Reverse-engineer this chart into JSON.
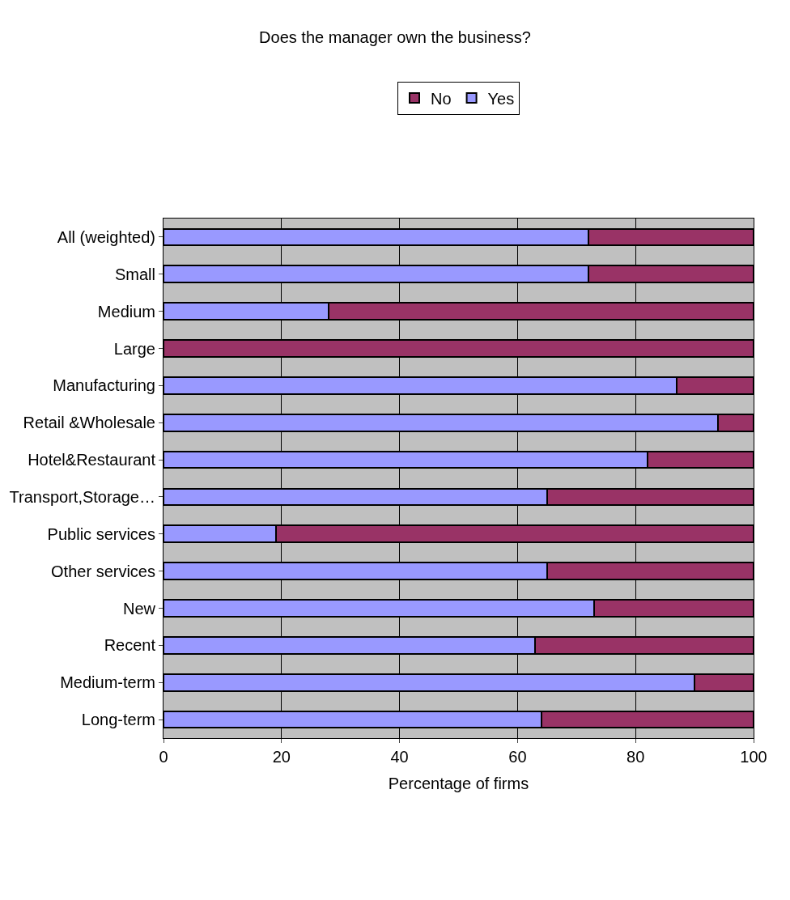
{
  "chart_data": {
    "type": "bar",
    "orientation": "horizontal",
    "stacked": true,
    "title": "Does the manager own the business?",
    "xlabel": "Percentage of firms",
    "categories": [
      "All (weighted)",
      "Small",
      "Medium",
      "Large",
      "Manufacturing",
      "Retail &Wholesale",
      "Hotel&Restaurant",
      "Transport,Storage…",
      "Public services",
      "Other services",
      "New",
      "Recent",
      "Medium-term",
      "Long-term"
    ],
    "series": [
      {
        "name": "Yes",
        "color": "#9999ff",
        "values": [
          72,
          72,
          28,
          0,
          87,
          94,
          82,
          65,
          19,
          65,
          73,
          63,
          90,
          64
        ]
      },
      {
        "name": "No",
        "color": "#993366",
        "values": [
          28,
          28,
          72,
          100,
          13,
          6,
          18,
          35,
          81,
          35,
          27,
          37,
          10,
          36
        ]
      }
    ],
    "xlim": [
      0,
      100
    ],
    "xticks": [
      0,
      20,
      40,
      60,
      80,
      100
    ],
    "grid": "x",
    "legend": "top"
  }
}
